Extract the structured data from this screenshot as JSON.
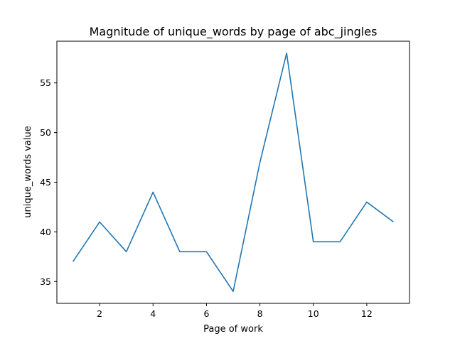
{
  "chart_data": {
    "type": "line",
    "title": "Magnitude of unique_words by page of abc_jingles",
    "xlabel": "Page of work",
    "ylabel": "unique_words value",
    "x": [
      1,
      2,
      3,
      4,
      5,
      6,
      7,
      8,
      9,
      10,
      11,
      12,
      13
    ],
    "series": [
      {
        "values": [
          37,
          41,
          38,
          44,
          38,
          38,
          34,
          47,
          58,
          39,
          39,
          43,
          41
        ],
        "color": "#1f77b4"
      }
    ],
    "xlim": [
      0.4,
      13.6
    ],
    "ylim": [
      32.8,
      59.2
    ],
    "xticks": [
      2,
      4,
      6,
      8,
      10,
      12
    ],
    "yticks": [
      35,
      40,
      45,
      50,
      55
    ],
    "grid": false,
    "legend": "none"
  }
}
